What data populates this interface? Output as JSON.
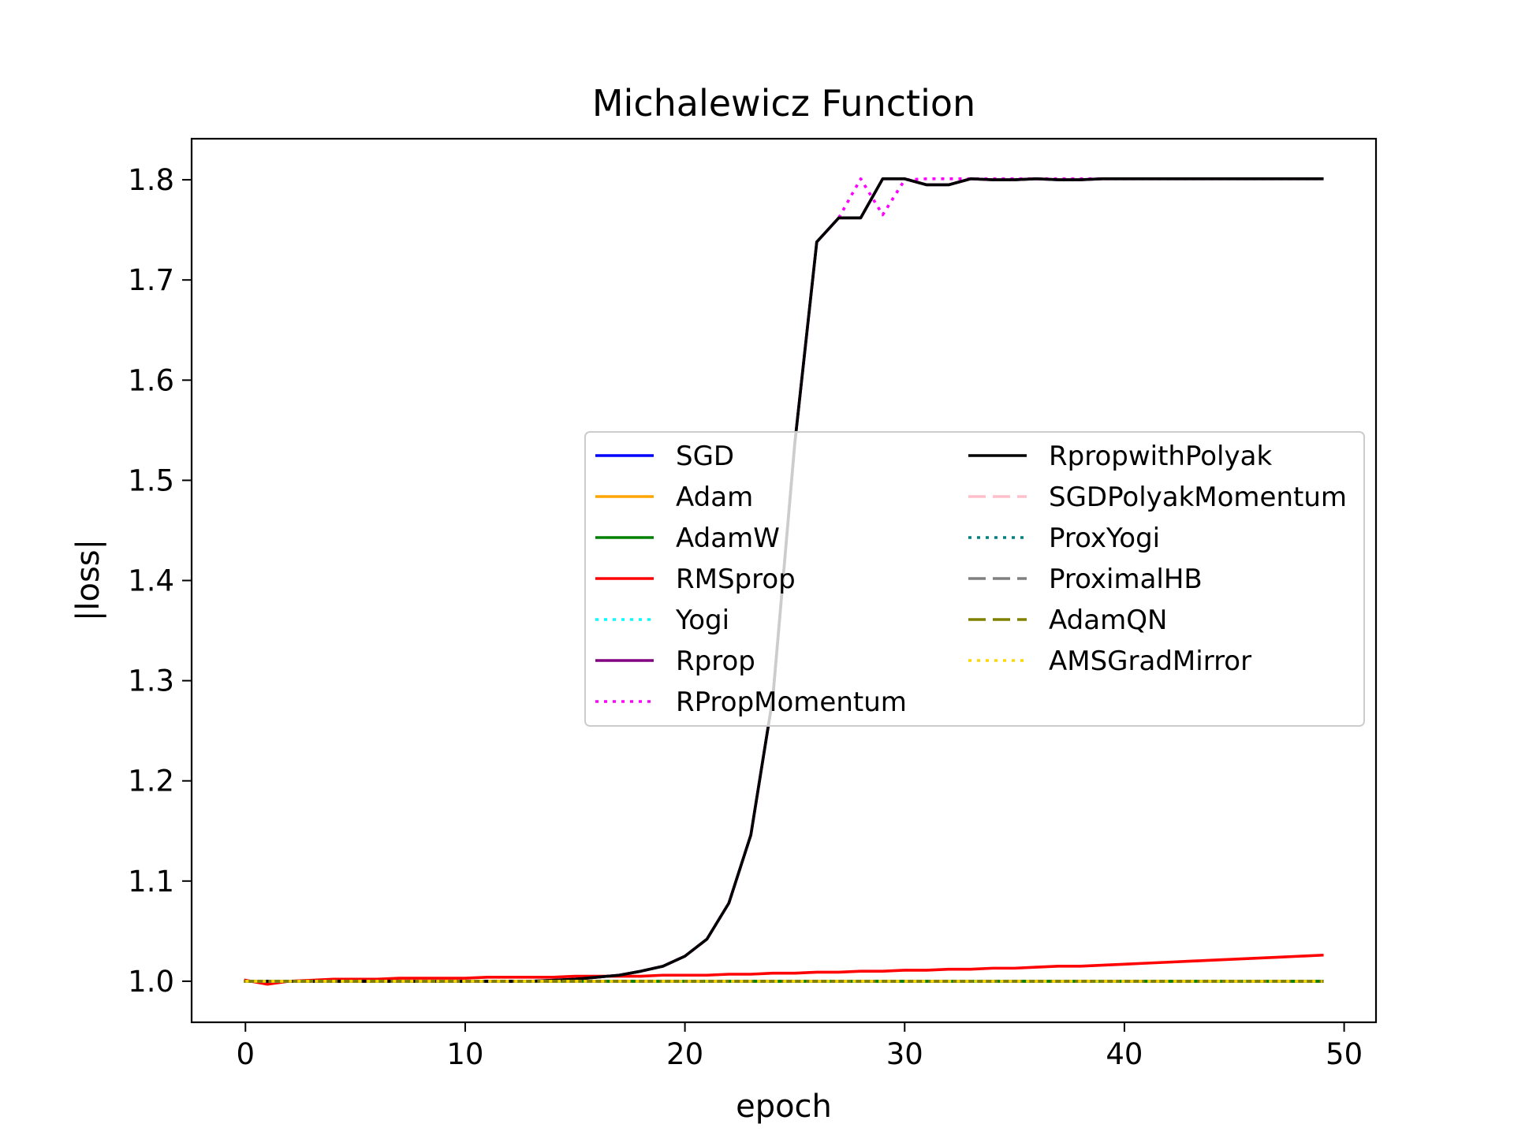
{
  "chart_data": {
    "type": "line",
    "title": "Michalewicz Function",
    "xlabel": "epoch",
    "ylabel": "|loss|",
    "xlim": [
      -2.45,
      51.45
    ],
    "ylim": [
      0.959,
      1.841
    ],
    "xticks": [
      0,
      10,
      20,
      30,
      40,
      50
    ],
    "yticks": [
      1.0,
      1.1,
      1.2,
      1.3,
      1.4,
      1.5,
      1.6,
      1.7,
      1.8
    ],
    "grid": false,
    "legend_position": "center-right",
    "legend_columns": 2,
    "x": [
      0,
      1,
      2,
      3,
      4,
      5,
      6,
      7,
      8,
      9,
      10,
      11,
      12,
      13,
      14,
      15,
      16,
      17,
      18,
      19,
      20,
      21,
      22,
      23,
      24,
      25,
      26,
      27,
      28,
      29,
      30,
      31,
      32,
      33,
      34,
      35,
      36,
      37,
      38,
      39,
      40,
      41,
      42,
      43,
      44,
      45,
      46,
      47,
      48,
      49
    ],
    "series": [
      {
        "name": "SGD",
        "color": "#0000ff",
        "dash": "solid",
        "values": [
          1.0,
          1.0,
          1.0,
          1.0,
          1.0,
          1.0,
          1.0,
          1.0,
          1.0,
          1.0,
          1.0,
          1.0,
          1.0,
          1.0,
          1.0,
          1.0,
          1.0,
          1.0,
          1.0,
          1.0,
          1.0,
          1.0,
          1.0,
          1.0,
          1.0,
          1.0,
          1.0,
          1.0,
          1.0,
          1.0,
          1.0,
          1.0,
          1.0,
          1.0,
          1.0,
          1.0,
          1.0,
          1.0,
          1.0,
          1.0,
          1.0,
          1.0,
          1.0,
          1.0,
          1.0,
          1.0,
          1.0,
          1.0,
          1.0,
          1.0
        ]
      },
      {
        "name": "Adam",
        "color": "#ffa500",
        "dash": "solid",
        "values": [
          1.0,
          1.0,
          1.0,
          1.0,
          1.0,
          1.0,
          1.0,
          1.0,
          1.0,
          1.0,
          1.0,
          1.0,
          1.0,
          1.0,
          1.0,
          1.0,
          1.0,
          1.0,
          1.0,
          1.0,
          1.0,
          1.0,
          1.0,
          1.0,
          1.0,
          1.0,
          1.0,
          1.0,
          1.0,
          1.0,
          1.0,
          1.0,
          1.0,
          1.0,
          1.0,
          1.0,
          1.0,
          1.0,
          1.0,
          1.0,
          1.0,
          1.0,
          1.0,
          1.0,
          1.0,
          1.0,
          1.0,
          1.0,
          1.0,
          1.0
        ]
      },
      {
        "name": "AdamW",
        "color": "#008000",
        "dash": "solid",
        "values": [
          1.0,
          1.0,
          1.0,
          1.0,
          1.0,
          1.0,
          1.0,
          1.0,
          1.0,
          1.0,
          1.0,
          1.0,
          1.0,
          1.0,
          1.0,
          1.0,
          1.0,
          1.0,
          1.0,
          1.0,
          1.0,
          1.0,
          1.0,
          1.0,
          1.0,
          1.0,
          1.0,
          1.0,
          1.0,
          1.0,
          1.0,
          1.0,
          1.0,
          1.0,
          1.0,
          1.0,
          1.0,
          1.0,
          1.0,
          1.0,
          1.0,
          1.0,
          1.0,
          1.0,
          1.0,
          1.0,
          1.0,
          1.0,
          1.0,
          1.0
        ]
      },
      {
        "name": "RMSprop",
        "color": "#ff0000",
        "dash": "solid",
        "values": [
          1.001,
          0.997,
          1.0,
          1.001,
          1.002,
          1.002,
          1.002,
          1.003,
          1.003,
          1.003,
          1.003,
          1.004,
          1.004,
          1.004,
          1.004,
          1.005,
          1.005,
          1.005,
          1.005,
          1.006,
          1.006,
          1.006,
          1.007,
          1.007,
          1.008,
          1.008,
          1.009,
          1.009,
          1.01,
          1.01,
          1.011,
          1.011,
          1.012,
          1.012,
          1.013,
          1.013,
          1.014,
          1.015,
          1.015,
          1.016,
          1.017,
          1.018,
          1.019,
          1.02,
          1.021,
          1.022,
          1.023,
          1.024,
          1.025,
          1.026
        ]
      },
      {
        "name": "Yogi",
        "color": "#00ffff",
        "dash": "dotted",
        "values": [
          1.0,
          1.0,
          1.0,
          1.0,
          1.0,
          1.0,
          1.0,
          1.0,
          1.0,
          1.0,
          1.0,
          1.0,
          1.0,
          1.0,
          1.0,
          1.0,
          1.0,
          1.0,
          1.0,
          1.0,
          1.0,
          1.0,
          1.0,
          1.0,
          1.0,
          1.0,
          1.0,
          1.0,
          1.0,
          1.0,
          1.0,
          1.0,
          1.0,
          1.0,
          1.0,
          1.0,
          1.0,
          1.0,
          1.0,
          1.0,
          1.0,
          1.0,
          1.0,
          1.0,
          1.0,
          1.0,
          1.0,
          1.0,
          1.0,
          1.0
        ]
      },
      {
        "name": "Rprop",
        "color": "#800080",
        "dash": "solid",
        "values": [
          1.0,
          1.0,
          1.0,
          1.0,
          1.0,
          1.0,
          1.0,
          1.0,
          1.0,
          1.0,
          1.0,
          1.0,
          1.0,
          1.0,
          1.001,
          1.002,
          1.004,
          1.006,
          1.01,
          1.015,
          1.025,
          1.042,
          1.078,
          1.146,
          1.283,
          1.537,
          1.738,
          1.762,
          1.762,
          1.801,
          1.801,
          1.795,
          1.795,
          1.801,
          1.8,
          1.8,
          1.801,
          1.8,
          1.8,
          1.801,
          1.801,
          1.801,
          1.801,
          1.801,
          1.801,
          1.801,
          1.801,
          1.801,
          1.801,
          1.801
        ]
      },
      {
        "name": "RPropMomentum",
        "color": "#ff00ff",
        "dash": "dotted",
        "values": [
          1.0,
          1.0,
          1.0,
          1.0,
          1.0,
          1.0,
          1.0,
          1.0,
          1.0,
          1.0,
          1.0,
          1.0,
          1.0,
          1.0,
          1.001,
          1.002,
          1.004,
          1.006,
          1.01,
          1.015,
          1.025,
          1.042,
          1.078,
          1.146,
          1.283,
          1.537,
          1.738,
          1.762,
          1.801,
          1.765,
          1.8,
          1.801,
          1.801,
          1.801,
          1.801,
          1.801,
          1.801,
          1.801,
          1.801,
          1.801,
          1.801,
          1.801,
          1.801,
          1.801,
          1.801,
          1.801,
          1.801,
          1.801,
          1.801,
          1.801
        ]
      },
      {
        "name": "RpropwithPolyak",
        "color": "#000000",
        "dash": "solid",
        "values": [
          1.0,
          1.0,
          1.0,
          1.0,
          1.0,
          1.0,
          1.0,
          1.0,
          1.0,
          1.0,
          1.0,
          1.0,
          1.0,
          1.0,
          1.001,
          1.002,
          1.004,
          1.006,
          1.01,
          1.015,
          1.025,
          1.042,
          1.078,
          1.146,
          1.283,
          1.537,
          1.738,
          1.762,
          1.762,
          1.801,
          1.801,
          1.795,
          1.795,
          1.801,
          1.8,
          1.8,
          1.801,
          1.8,
          1.8,
          1.801,
          1.801,
          1.801,
          1.801,
          1.801,
          1.801,
          1.801,
          1.801,
          1.801,
          1.801,
          1.801
        ]
      },
      {
        "name": "SGDPolyakMomentum",
        "color": "#ffc0cb",
        "dash": "dashed",
        "values": [
          1.0,
          1.0,
          1.0,
          1.0,
          1.0,
          1.0,
          1.0,
          1.0,
          1.0,
          1.0,
          1.0,
          1.0,
          1.0,
          1.0,
          1.0,
          1.0,
          1.0,
          1.0,
          1.0,
          1.0,
          1.0,
          1.0,
          1.0,
          1.0,
          1.0,
          1.0,
          1.0,
          1.0,
          1.0,
          1.0,
          1.0,
          1.0,
          1.0,
          1.0,
          1.0,
          1.0,
          1.0,
          1.0,
          1.0,
          1.0,
          1.0,
          1.0,
          1.0,
          1.0,
          1.0,
          1.0,
          1.0,
          1.0,
          1.0,
          1.0
        ]
      },
      {
        "name": "ProxYogi",
        "color": "#008080",
        "dash": "dotted",
        "values": [
          1.0,
          1.0,
          1.0,
          1.0,
          1.0,
          1.0,
          1.0,
          1.0,
          1.0,
          1.0,
          1.0,
          1.0,
          1.0,
          1.0,
          1.0,
          1.0,
          1.0,
          1.0,
          1.0,
          1.0,
          1.0,
          1.0,
          1.0,
          1.0,
          1.0,
          1.0,
          1.0,
          1.0,
          1.0,
          1.0,
          1.0,
          1.0,
          1.0,
          1.0,
          1.0,
          1.0,
          1.0,
          1.0,
          1.0,
          1.0,
          1.0,
          1.0,
          1.0,
          1.0,
          1.0,
          1.0,
          1.0,
          1.0,
          1.0,
          1.0
        ]
      },
      {
        "name": "ProximalHB",
        "color": "#808080",
        "dash": "dashed",
        "values": [
          1.0,
          1.0,
          1.0,
          1.0,
          1.0,
          1.0,
          1.0,
          1.0,
          1.0,
          1.0,
          1.0,
          1.0,
          1.0,
          1.0,
          1.0,
          1.0,
          1.0,
          1.0,
          1.0,
          1.0,
          1.0,
          1.0,
          1.0,
          1.0,
          1.0,
          1.0,
          1.0,
          1.0,
          1.0,
          1.0,
          1.0,
          1.0,
          1.0,
          1.0,
          1.0,
          1.0,
          1.0,
          1.0,
          1.0,
          1.0,
          1.0,
          1.0,
          1.0,
          1.0,
          1.0,
          1.0,
          1.0,
          1.0,
          1.0,
          1.0
        ]
      },
      {
        "name": "AdamQN",
        "color": "#808000",
        "dash": "dashed",
        "values": [
          1.0,
          1.0,
          1.0,
          1.0,
          1.0,
          1.0,
          1.0,
          1.0,
          1.0,
          1.0,
          1.0,
          1.0,
          1.0,
          1.0,
          1.0,
          1.0,
          1.0,
          1.0,
          1.0,
          1.0,
          1.0,
          1.0,
          1.0,
          1.0,
          1.0,
          1.0,
          1.0,
          1.0,
          1.0,
          1.0,
          1.0,
          1.0,
          1.0,
          1.0,
          1.0,
          1.0,
          1.0,
          1.0,
          1.0,
          1.0,
          1.0,
          1.0,
          1.0,
          1.0,
          1.0,
          1.0,
          1.0,
          1.0,
          1.0,
          1.0
        ]
      },
      {
        "name": "AMSGradMirror",
        "color": "#ffd700",
        "dash": "dotted",
        "values": [
          1.0,
          1.0,
          1.0,
          1.0,
          1.0,
          1.0,
          1.0,
          1.0,
          1.0,
          1.0,
          1.0,
          1.0,
          1.0,
          1.0,
          1.0,
          1.0,
          1.0,
          1.0,
          1.0,
          1.0,
          1.0,
          1.0,
          1.0,
          1.0,
          1.0,
          1.0,
          1.0,
          1.0,
          1.0,
          1.0,
          1.0,
          1.0,
          1.0,
          1.0,
          1.0,
          1.0,
          1.0,
          1.0,
          1.0,
          1.0,
          1.0,
          1.0,
          1.0,
          1.0,
          1.0,
          1.0,
          1.0,
          1.0,
          1.0,
          1.0
        ]
      }
    ]
  }
}
